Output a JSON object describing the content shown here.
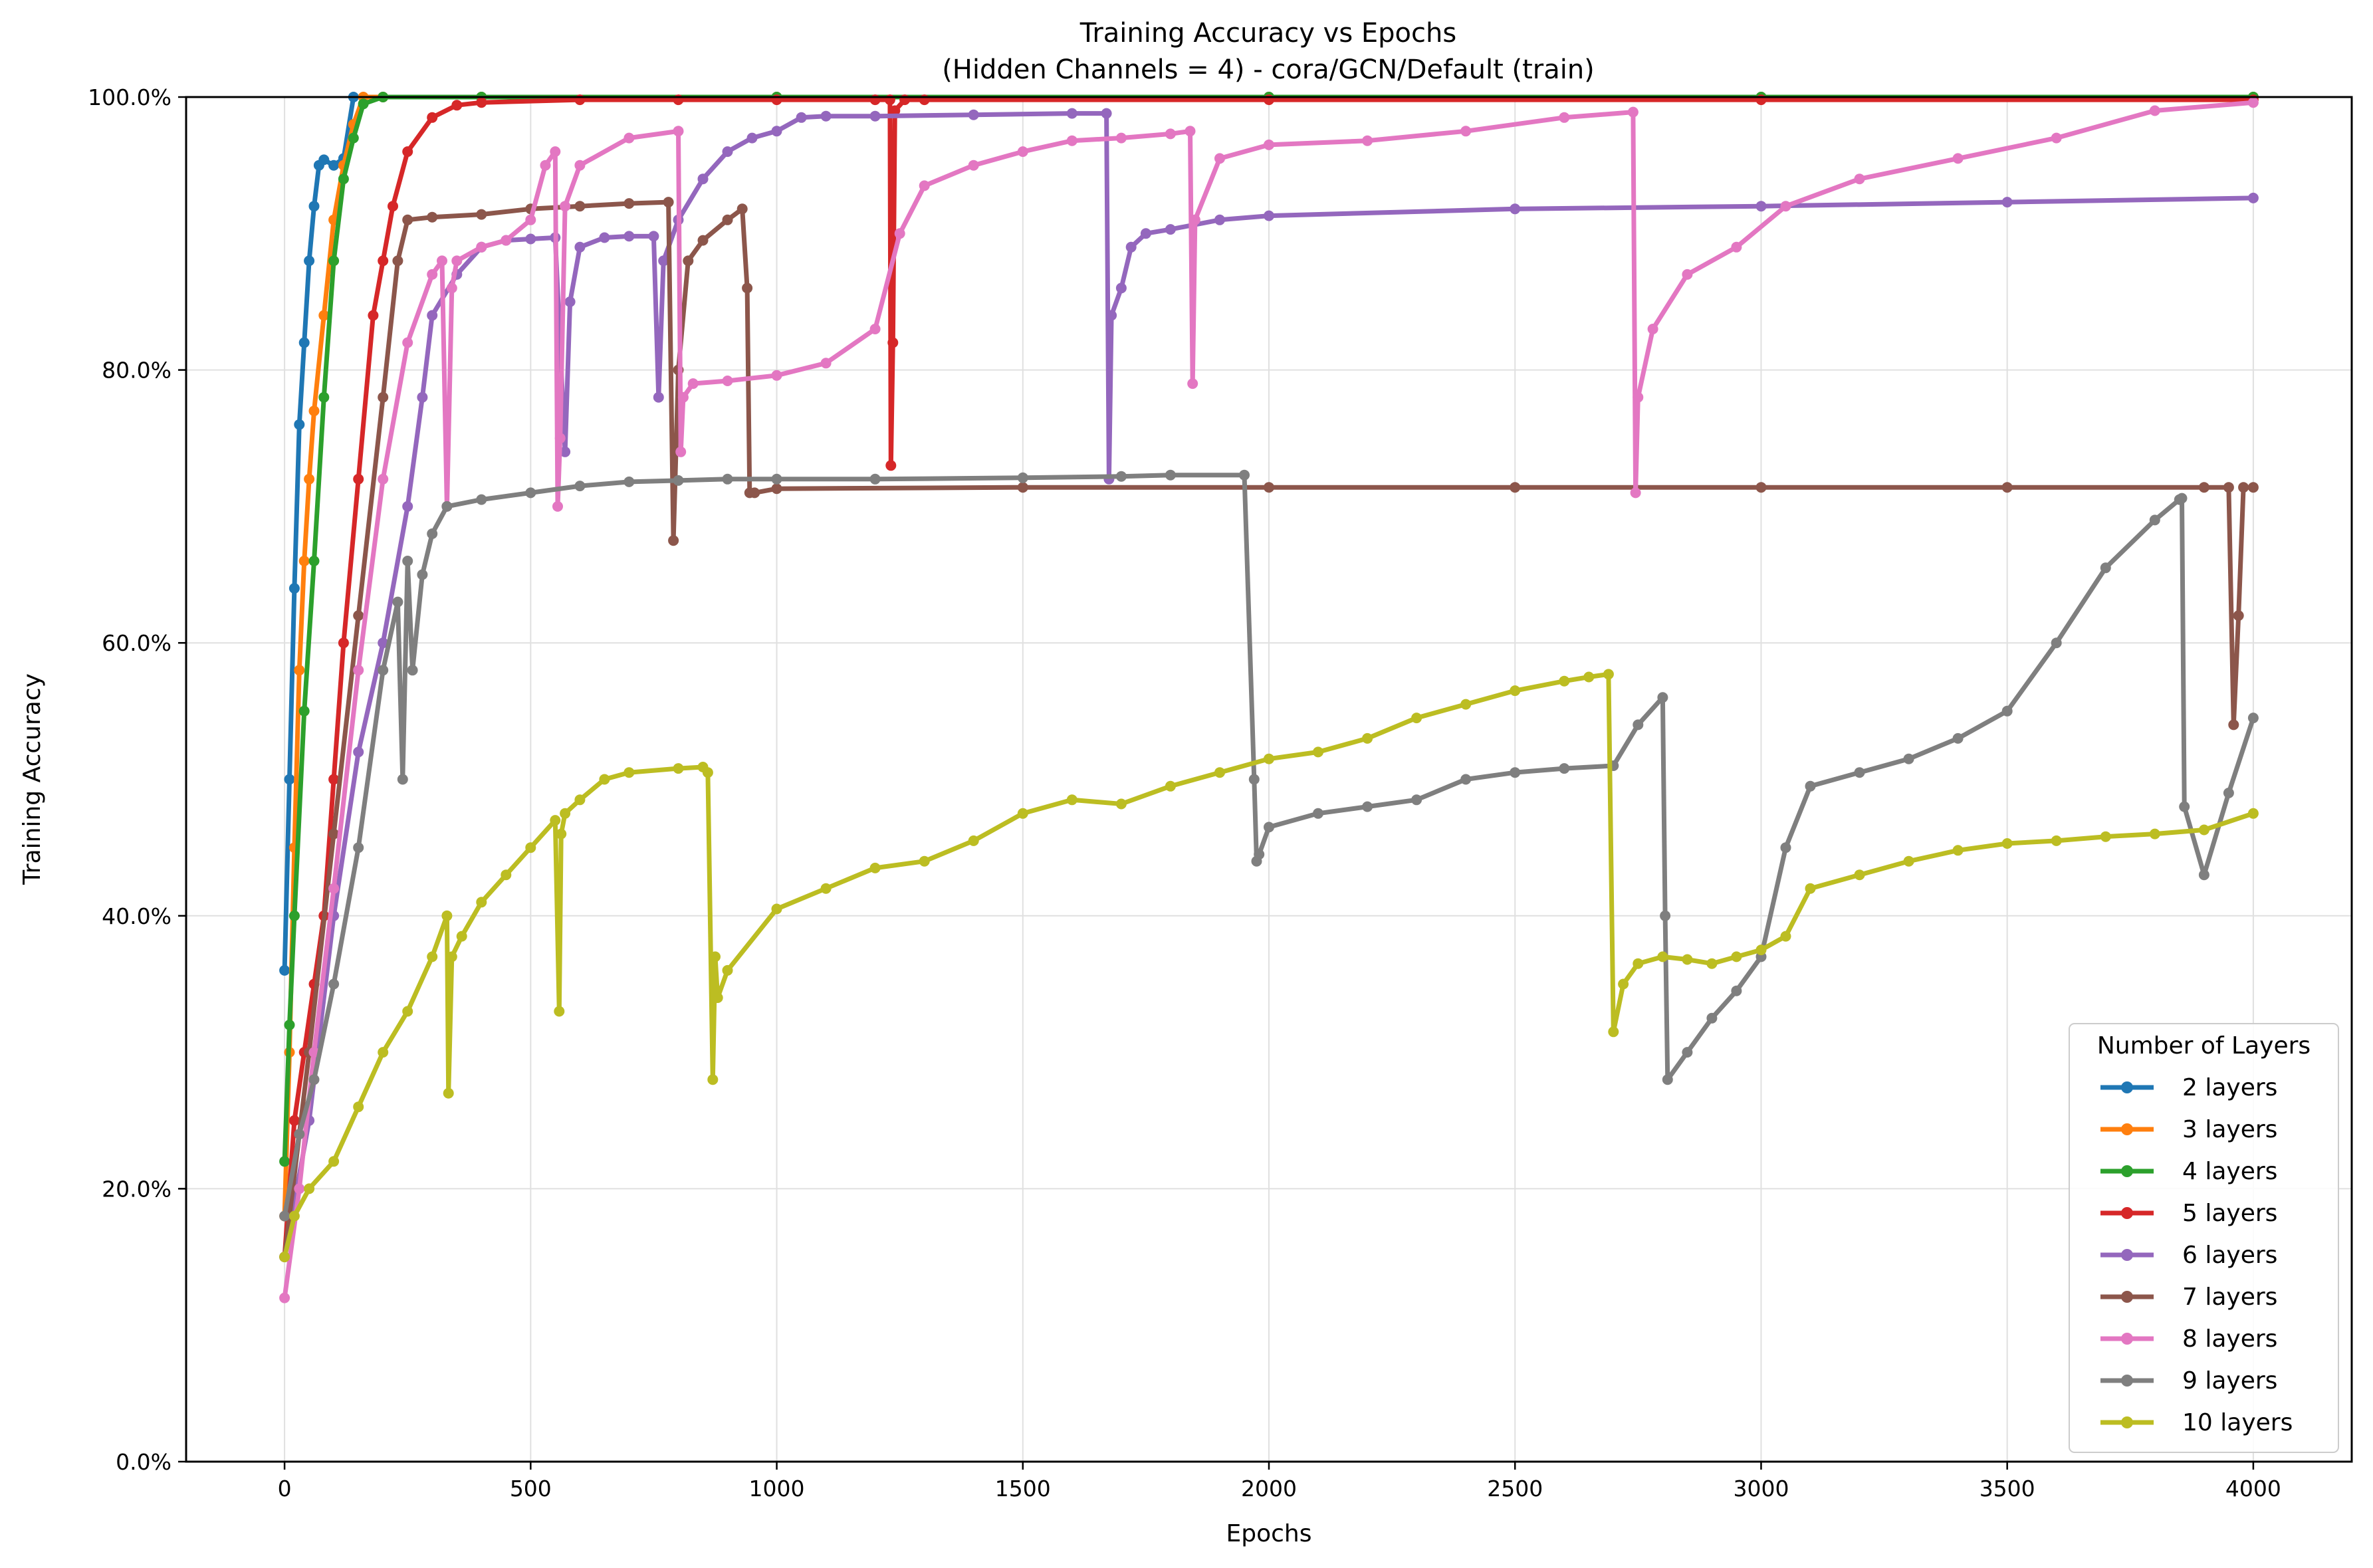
{
  "chart_data": {
    "type": "line",
    "title": "Training Accuracy vs Epochs",
    "subtitle": "(Hidden Channels = 4) - cora/GCN/Default (train)",
    "xlabel": "Epochs",
    "ylabel": "Training Accuracy",
    "xlim": [
      -200,
      4200
    ],
    "ylim": [
      0,
      100
    ],
    "xticks": [
      0,
      500,
      1000,
      1500,
      2000,
      2500,
      3000,
      3500,
      4000
    ],
    "xtick_labels": [
      "0",
      "500",
      "1000",
      "1500",
      "2000",
      "2500",
      "3000",
      "3500",
      "4000"
    ],
    "yticks": [
      0,
      20,
      40,
      60,
      80,
      100
    ],
    "ytick_labels": [
      "0.0%",
      "20.0%",
      "40.0%",
      "60.0%",
      "80.0%",
      "100.0%"
    ],
    "grid": true,
    "legend_title": "Number of Layers",
    "legend_position": "lower-right",
    "series": [
      {
        "name": "2 layers",
        "color": "#1f77b4",
        "x": [
          0,
          10,
          20,
          30,
          40,
          50,
          60,
          70,
          80,
          100,
          120,
          140,
          200,
          400,
          1000,
          2000,
          3000,
          4000
        ],
        "y": [
          36,
          50,
          64,
          76,
          82,
          88,
          92,
          95,
          95.4,
          95,
          95.5,
          100,
          100,
          100,
          100,
          100,
          100,
          100
        ]
      },
      {
        "name": "3 layers",
        "color": "#ff7f0e",
        "x": [
          0,
          10,
          20,
          30,
          40,
          50,
          60,
          80,
          100,
          120,
          140,
          160,
          200,
          400,
          1000,
          2000,
          3000,
          4000
        ],
        "y": [
          18,
          30,
          45,
          58,
          66,
          72,
          77,
          84,
          91,
          95,
          98,
          100,
          100,
          100,
          100,
          100,
          100,
          100
        ]
      },
      {
        "name": "4 layers",
        "color": "#2ca02c",
        "x": [
          0,
          10,
          20,
          40,
          60,
          80,
          100,
          120,
          140,
          160,
          200,
          400,
          1000,
          2000,
          3000,
          4000
        ],
        "y": [
          22,
          32,
          40,
          55,
          66,
          78,
          88,
          94,
          97,
          99.5,
          100,
          100,
          100,
          100,
          100,
          100
        ]
      },
      {
        "name": "5 layers",
        "color": "#d62728",
        "x": [
          0,
          20,
          40,
          60,
          80,
          100,
          120,
          150,
          180,
          200,
          220,
          250,
          300,
          350,
          400,
          600,
          800,
          1000,
          1200,
          1230,
          1232,
          1236,
          1240,
          1260,
          1300,
          2000,
          3000,
          4000
        ],
        "y": [
          15,
          25,
          30,
          35,
          40,
          50,
          60,
          72,
          84,
          88,
          92,
          96,
          98.5,
          99.4,
          99.6,
          99.8,
          99.8,
          99.8,
          99.8,
          99.8,
          73,
          82,
          99,
          99.8,
          99.8,
          99.8,
          99.8,
          99.8
        ]
      },
      {
        "name": "6 layers",
        "color": "#9467bd",
        "x": [
          0,
          50,
          100,
          150,
          200,
          250,
          280,
          300,
          350,
          400,
          450,
          500,
          550,
          570,
          580,
          600,
          650,
          700,
          750,
          760,
          770,
          800,
          850,
          900,
          950,
          1000,
          1050,
          1100,
          1200,
          1400,
          1600,
          1670,
          1675,
          1680,
          1700,
          1720,
          1750,
          1800,
          1900,
          2000,
          2500,
          3000,
          3500,
          4000
        ],
        "y": [
          15,
          25,
          40,
          52,
          60,
          70,
          78,
          84,
          87,
          89,
          89.5,
          89.6,
          89.7,
          74,
          85,
          89,
          89.7,
          89.8,
          89.8,
          78,
          88,
          91,
          94,
          96,
          97,
          97.5,
          98.5,
          98.6,
          98.6,
          98.7,
          98.8,
          98.8,
          72,
          84,
          86,
          89,
          90,
          90.3,
          91,
          91.3,
          91.8,
          92,
          92.3,
          92.6
        ]
      },
      {
        "name": "7 layers",
        "color": "#8c564b",
        "x": [
          0,
          50,
          100,
          150,
          200,
          230,
          250,
          300,
          400,
          500,
          600,
          700,
          780,
          790,
          800,
          820,
          850,
          900,
          930,
          940,
          945,
          955,
          1000,
          1500,
          2000,
          2500,
          3000,
          3500,
          3900,
          3950,
          3960,
          3970,
          3980,
          4000
        ],
        "y": [
          15,
          30,
          46,
          62,
          78,
          88,
          91,
          91.2,
          91.4,
          91.8,
          92,
          92.2,
          92.3,
          67.5,
          80,
          88,
          89.5,
          91,
          91.8,
          86,
          71,
          71,
          71.3,
          71.4,
          71.4,
          71.4,
          71.4,
          71.4,
          71.4,
          71.4,
          54,
          62,
          71.4,
          71.4
        ]
      },
      {
        "name": "8 layers",
        "color": "#e377c2",
        "x": [
          0,
          30,
          60,
          100,
          150,
          200,
          250,
          300,
          320,
          330,
          340,
          350,
          400,
          450,
          500,
          530,
          550,
          555,
          560,
          570,
          600,
          700,
          800,
          805,
          810,
          830,
          900,
          1000,
          1100,
          1200,
          1250,
          1300,
          1400,
          1500,
          1600,
          1700,
          1800,
          1840,
          1845,
          1850,
          1900,
          2000,
          2200,
          2400,
          2600,
          2740,
          2745,
          2750,
          2780,
          2850,
          2950,
          3050,
          3200,
          3400,
          3600,
          3800,
          4000
        ],
        "y": [
          12,
          20,
          30,
          42,
          58,
          72,
          82,
          87,
          88,
          70,
          86,
          88,
          89,
          89.5,
          91,
          95,
          96,
          70,
          75,
          92,
          95,
          97,
          97.5,
          74,
          78,
          79,
          79.2,
          79.6,
          80.5,
          83,
          90,
          93.5,
          95,
          96,
          96.8,
          97,
          97.3,
          97.5,
          79,
          91,
          95.5,
          96.5,
          96.8,
          97.5,
          98.5,
          98.9,
          71,
          78,
          83,
          87,
          89,
          92,
          94,
          95.5,
          97,
          99,
          99.6
        ]
      },
      {
        "name": "9 layers",
        "color": "#7f7f7f",
        "x": [
          0,
          30,
          60,
          100,
          150,
          200,
          230,
          240,
          250,
          260,
          280,
          300,
          330,
          400,
          500,
          600,
          700,
          800,
          900,
          1000,
          1200,
          1500,
          1700,
          1800,
          1950,
          1970,
          1975,
          1980,
          2000,
          2100,
          2200,
          2300,
          2400,
          2500,
          2600,
          2700,
          2750,
          2800,
          2805,
          2810,
          2850,
          2900,
          2950,
          3000,
          3050,
          3100,
          3200,
          3300,
          3400,
          3500,
          3600,
          3700,
          3800,
          3850,
          3855,
          3860,
          3900,
          3950,
          4000
        ],
        "y": [
          18,
          24,
          28,
          35,
          45,
          58,
          63,
          50,
          66,
          58,
          65,
          68,
          70,
          70.5,
          71,
          71.5,
          71.8,
          71.9,
          72,
          72,
          72,
          72.1,
          72.2,
          72.3,
          72.3,
          50,
          44,
          44.5,
          46.5,
          47.5,
          48,
          48.5,
          50,
          50.5,
          50.8,
          51,
          54,
          56,
          40,
          28,
          30,
          32.5,
          34.5,
          37,
          45,
          49.5,
          50.5,
          51.5,
          53,
          55,
          60,
          65.5,
          69,
          70.5,
          70.6,
          48,
          43,
          49,
          54.5
        ]
      },
      {
        "name": "10 layers",
        "color": "#bcbd22",
        "x": [
          0,
          20,
          50,
          100,
          150,
          200,
          250,
          300,
          330,
          333,
          340,
          360,
          400,
          450,
          500,
          550,
          558,
          562,
          570,
          600,
          650,
          700,
          800,
          850,
          860,
          870,
          875,
          880,
          900,
          1000,
          1100,
          1200,
          1300,
          1400,
          1500,
          1600,
          1700,
          1800,
          1900,
          2000,
          2100,
          2200,
          2300,
          2400,
          2500,
          2600,
          2650,
          2690,
          2700,
          2720,
          2750,
          2800,
          2850,
          2900,
          2950,
          3000,
          3050,
          3100,
          3200,
          3300,
          3400,
          3500,
          3600,
          3700,
          3800,
          3900,
          4000
        ],
        "y": [
          15,
          18,
          20,
          22,
          26,
          30,
          33,
          37,
          40,
          27,
          37,
          38.5,
          41,
          43,
          45,
          47,
          33,
          46,
          47.5,
          48.5,
          50,
          50.5,
          50.8,
          50.9,
          50.5,
          28,
          37,
          34,
          36,
          40.5,
          42,
          43.5,
          44,
          45.5,
          47.5,
          48.5,
          48.2,
          49.5,
          50.5,
          51.5,
          52,
          53,
          54.5,
          55.5,
          56.5,
          57.2,
          57.5,
          57.7,
          31.5,
          35,
          36.5,
          37,
          36.8,
          36.5,
          37,
          37.5,
          38.5,
          42,
          43,
          44,
          44.8,
          45.3,
          45.5,
          45.8,
          46,
          46.3,
          47.5
        ]
      }
    ]
  }
}
